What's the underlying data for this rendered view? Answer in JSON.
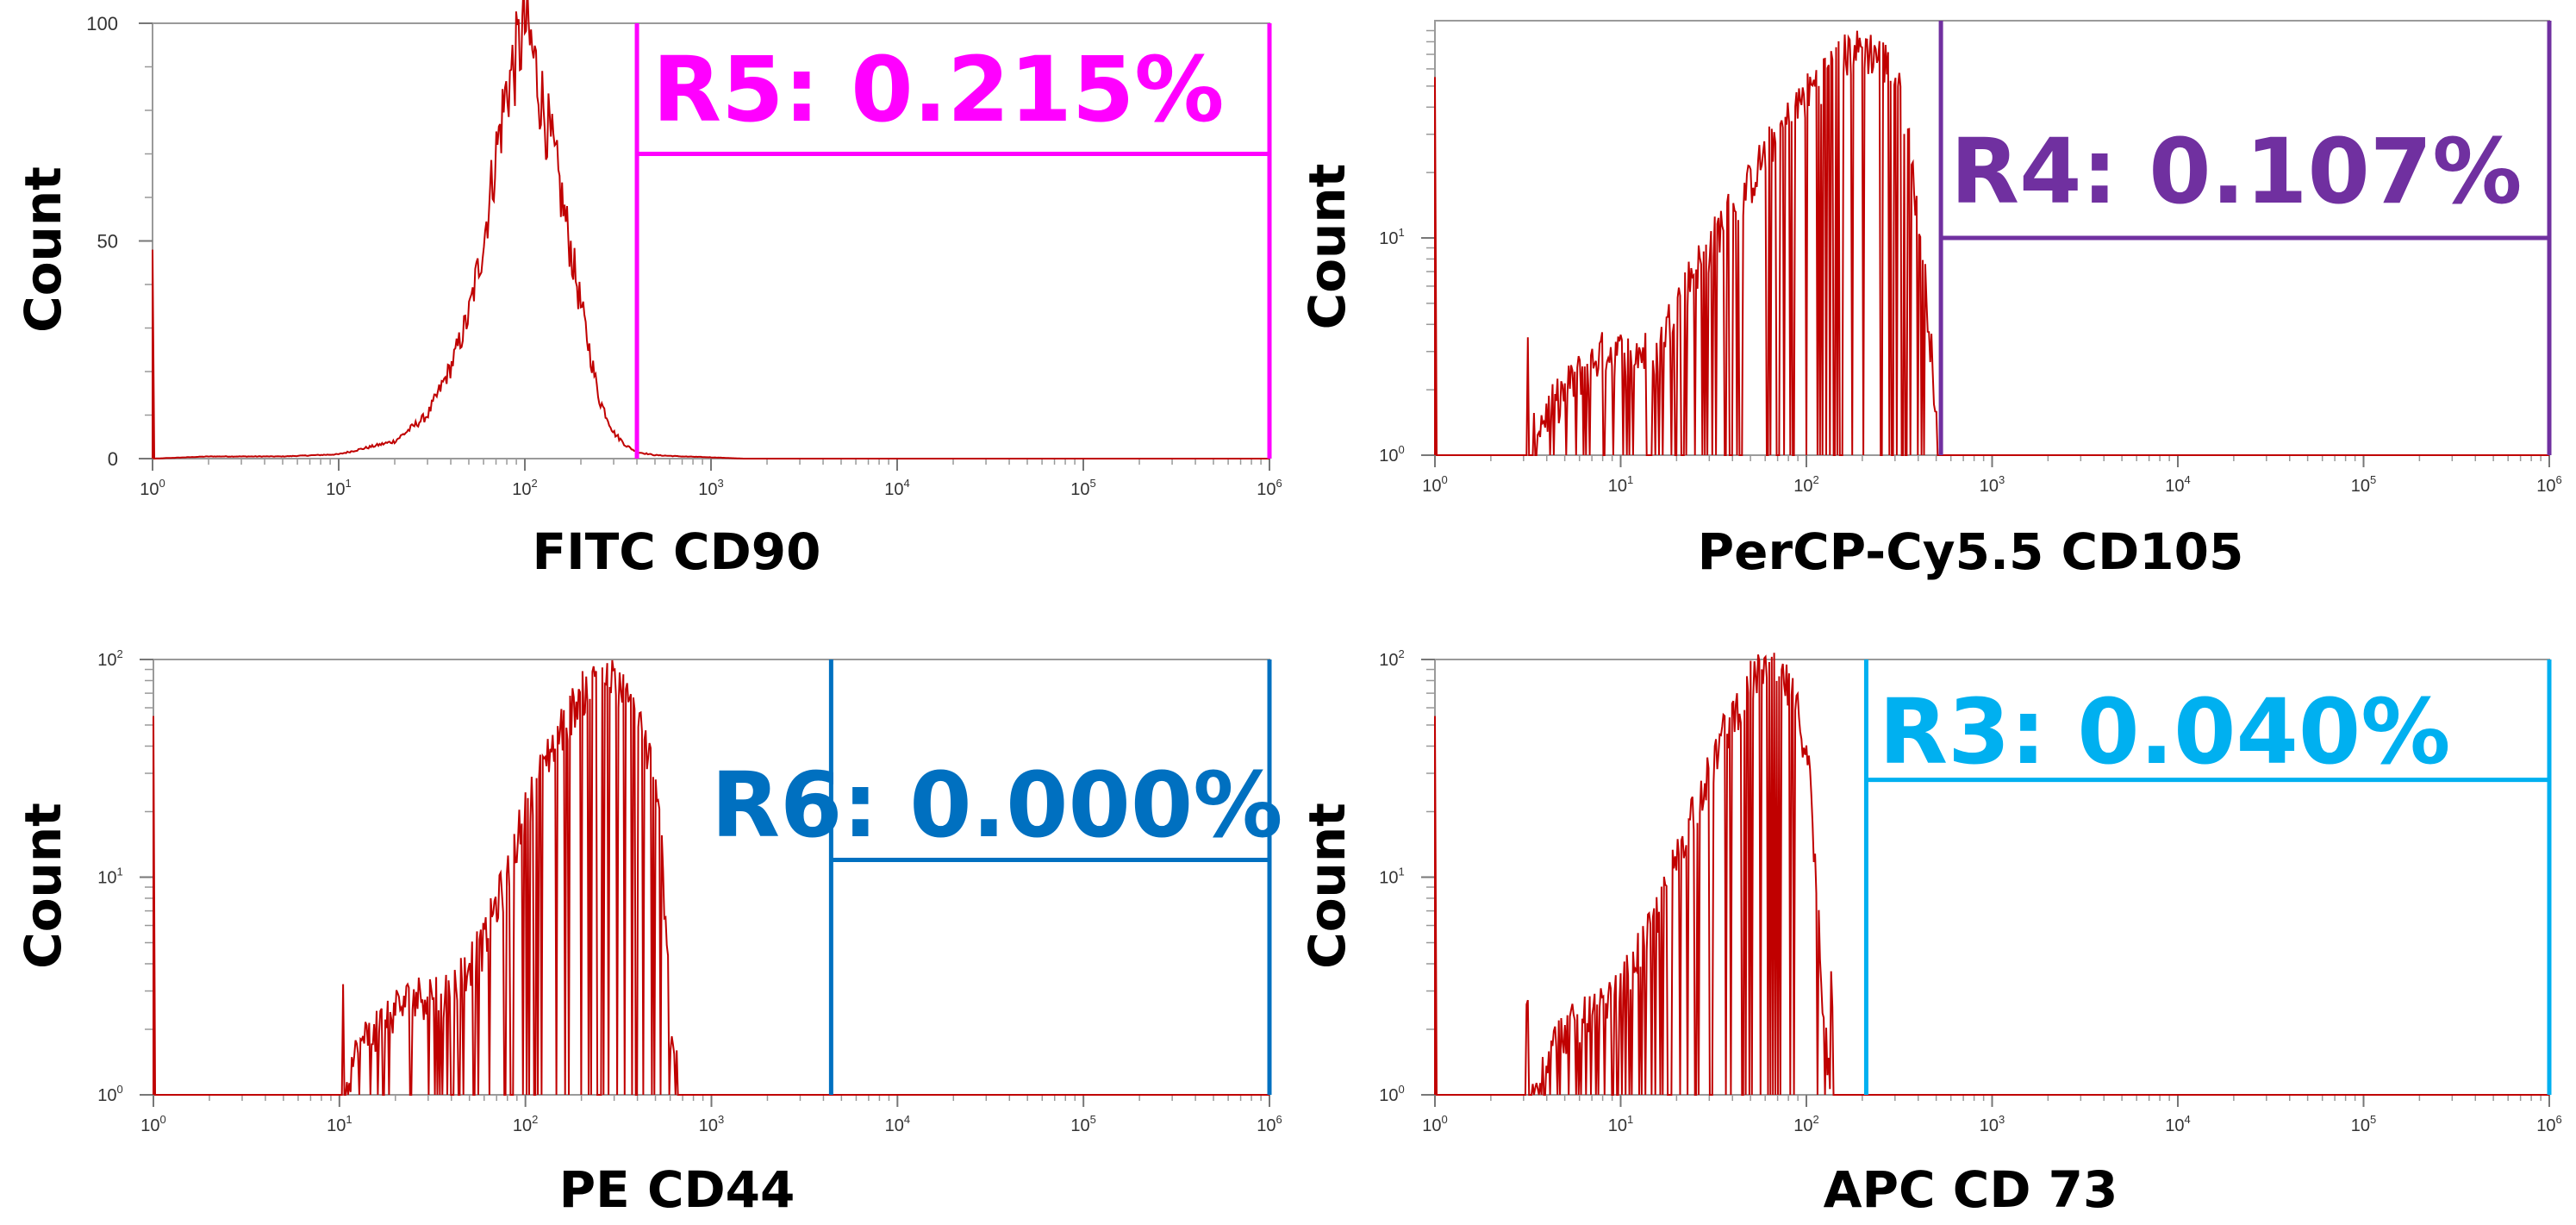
{
  "chart_data": [
    {
      "type": "area",
      "panel": "top-left",
      "xlabel": "FITC CD90",
      "ylabel": "Count",
      "x_scale": "log",
      "xlim": [
        1,
        1000000
      ],
      "x_ticks": [
        {
          "base": "10",
          "exp": "0"
        },
        {
          "base": "10",
          "exp": "1"
        },
        {
          "base": "10",
          "exp": "2"
        },
        {
          "base": "10",
          "exp": "3"
        },
        {
          "base": "10",
          "exp": "4"
        },
        {
          "base": "10",
          "exp": "5"
        },
        {
          "base": "10",
          "exp": "6"
        }
      ],
      "y_scale": "linear",
      "ylim": [
        0,
        100
      ],
      "y_ticks": [
        {
          "value": 0,
          "label": "0"
        },
        {
          "value": 50,
          "label": "50"
        },
        {
          "value": 100,
          "label": "100"
        }
      ],
      "series": [
        {
          "color": "#c00000",
          "x": [
            1,
            2,
            5,
            10,
            20,
            30,
            40,
            50,
            60,
            70,
            80,
            90,
            100,
            110,
            120,
            150,
            200,
            250,
            300,
            350,
            400,
            500,
            700,
            1000,
            1500
          ],
          "y": [
            0,
            0.5,
            0.5,
            1,
            4,
            10,
            21,
            33,
            50,
            70,
            85,
            92,
            100,
            93,
            85,
            65,
            35,
            14,
            6,
            3,
            1.5,
            0.8,
            0.5,
            0.3,
            0
          ]
        }
      ],
      "gate": {
        "name": "R5",
        "label": "R5: 0.215%",
        "percent": 0.215,
        "color": "#ff00ff",
        "x_start": 400,
        "x_end": 1000000,
        "y_bar": 70
      }
    },
    {
      "type": "area",
      "panel": "top-right",
      "xlabel": "PerCP-Cy5.5 CD105",
      "ylabel": "Count",
      "x_scale": "log",
      "xlim": [
        1,
        1000000
      ],
      "x_ticks": [
        {
          "base": "10",
          "exp": "0"
        },
        {
          "base": "10",
          "exp": "1"
        },
        {
          "base": "10",
          "exp": "2"
        },
        {
          "base": "10",
          "exp": "3"
        },
        {
          "base": "10",
          "exp": "4"
        },
        {
          "base": "10",
          "exp": "5"
        },
        {
          "base": "10",
          "exp": "6"
        }
      ],
      "y_scale": "log",
      "ylim": [
        1,
        100
      ],
      "y_ticks": [
        {
          "value": 1,
          "base": "10",
          "exp": "0"
        },
        {
          "value": 10,
          "base": "10",
          "exp": "1"
        }
      ],
      "series": [
        {
          "color": "#c00000",
          "x": [
            1,
            3,
            5,
            8,
            12,
            16,
            20,
            30,
            50,
            80,
            120,
            160,
            200,
            250,
            300,
            380,
            420,
            470,
            500,
            520,
            540
          ],
          "y": [
            1,
            1,
            2,
            3,
            3,
            3,
            5,
            9,
            18,
            35,
            55,
            70,
            75,
            70,
            55,
            18,
            8,
            3,
            1.5,
            1,
            1
          ]
        }
      ],
      "gate": {
        "name": "R4",
        "label": "R4: 0.107%",
        "percent": 0.107,
        "color": "#7030a0",
        "x_start": 530,
        "x_end": 1000000,
        "y_bar": 10
      }
    },
    {
      "type": "area",
      "panel": "bottom-left",
      "xlabel": "PE CD44",
      "ylabel": "Count",
      "x_scale": "log",
      "xlim": [
        1,
        1000000
      ],
      "x_ticks": [
        {
          "base": "10",
          "exp": "0"
        },
        {
          "base": "10",
          "exp": "1"
        },
        {
          "base": "10",
          "exp": "2"
        },
        {
          "base": "10",
          "exp": "3"
        },
        {
          "base": "10",
          "exp": "4"
        },
        {
          "base": "10",
          "exp": "5"
        },
        {
          "base": "10",
          "exp": "6"
        }
      ],
      "y_scale": "log",
      "ylim": [
        1,
        100
      ],
      "y_ticks": [
        {
          "value": 1,
          "base": "10",
          "exp": "0"
        },
        {
          "value": 10,
          "base": "10",
          "exp": "1"
        },
        {
          "value": 100,
          "base": "10",
          "exp": "2"
        }
      ],
      "series": [
        {
          "color": "#c00000",
          "x": [
            1,
            10,
            15,
            20,
            30,
            40,
            60,
            80,
            100,
            150,
            200,
            250,
            300,
            400,
            500,
            560,
            600,
            650,
            700,
            800
          ],
          "y": [
            1,
            1,
            2,
            2.5,
            3,
            3,
            5,
            10,
            20,
            45,
            70,
            90,
            80,
            55,
            25,
            8,
            2,
            1.5,
            1,
            1
          ]
        }
      ],
      "gate": {
        "name": "R6",
        "label": "R6: 0.000%",
        "percent": 0.0,
        "color": "#0070c0",
        "x_start": 4400,
        "x_end": 1000000,
        "y_bar": 12
      }
    },
    {
      "type": "area",
      "panel": "bottom-right",
      "xlabel": "APC CD 73",
      "ylabel": "Count",
      "x_scale": "log",
      "xlim": [
        1,
        1000000
      ],
      "x_ticks": [
        {
          "base": "10",
          "exp": "0"
        },
        {
          "base": "10",
          "exp": "1"
        },
        {
          "base": "10",
          "exp": "2"
        },
        {
          "base": "10",
          "exp": "3"
        },
        {
          "base": "10",
          "exp": "4"
        },
        {
          "base": "10",
          "exp": "5"
        },
        {
          "base": "10",
          "exp": "6"
        }
      ],
      "y_scale": "log",
      "ylim": [
        1,
        100
      ],
      "y_ticks": [
        {
          "value": 1,
          "base": "10",
          "exp": "0"
        },
        {
          "value": 10,
          "base": "10",
          "exp": "1"
        },
        {
          "value": 100,
          "base": "10",
          "exp": "2"
        }
      ],
      "series": [
        {
          "color": "#c00000",
          "x": [
            1,
            3,
            5,
            8,
            10,
            15,
            20,
            30,
            40,
            50,
            60,
            70,
            80,
            100,
            110,
            120,
            130,
            140
          ],
          "y": [
            1,
            1,
            2,
            2.5,
            3,
            6,
            12,
            30,
            55,
            80,
            90,
            85,
            75,
            40,
            12,
            3,
            1.5,
            1
          ]
        }
      ],
      "gate": {
        "name": "R3",
        "label": "R3: 0.040%",
        "percent": 0.04,
        "color": "#00b0f0",
        "x_start": 210,
        "x_end": 1000000,
        "y_bar": 28
      }
    }
  ]
}
